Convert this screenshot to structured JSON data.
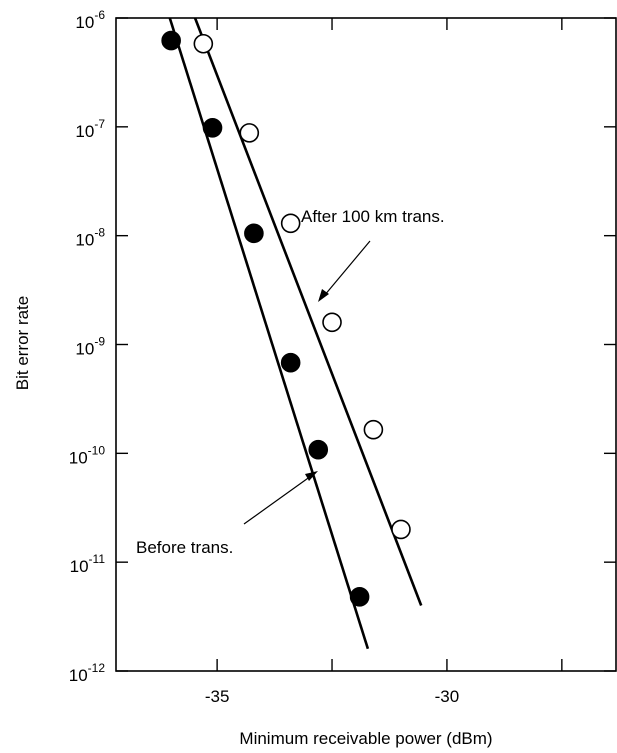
{
  "chart_data": {
    "type": "scatter",
    "title": "",
    "xlabel": "Minimum receivable power (dBm)",
    "ylabel": "Bit error rate",
    "xlim": [
      -37.2,
      -26.3
    ],
    "ylim_exponent": [
      -12,
      -6
    ],
    "yscale": "log",
    "x_ticks": [
      {
        "value": -35,
        "label": "-35"
      },
      {
        "value": -30,
        "label": "-30"
      }
    ],
    "y_ticks": [
      {
        "exp": -6,
        "base": "10",
        "sup": "-6"
      },
      {
        "exp": -7,
        "base": "10",
        "sup": "-7"
      },
      {
        "exp": -8,
        "base": "10",
        "sup": "-8"
      },
      {
        "exp": -9,
        "base": "10",
        "sup": "-9"
      },
      {
        "exp": -10,
        "base": "10",
        "sup": "-10"
      },
      {
        "exp": -11,
        "base": "10",
        "sup": "-11"
      },
      {
        "exp": -12,
        "base": "10",
        "sup": "-12"
      }
    ],
    "grid": false,
    "series": [
      {
        "marker": "filled-circle",
        "color": "#000000",
        "points": [
          {
            "x": -36.0,
            "y": 6.2e-07
          },
          {
            "x": -35.1,
            "y": 9.8e-08
          },
          {
            "x": -34.2,
            "y": 1.05e-08
          },
          {
            "x": -33.4,
            "y": 6.8e-10
          },
          {
            "x": -32.8,
            "y": 1.08e-10
          },
          {
            "x": -31.9,
            "y": 4.8e-12
          }
        ],
        "fit_line": [
          {
            "x": -36.03,
            "y": 1e-06
          },
          {
            "x": -31.72,
            "y": 1.6e-12
          }
        ]
      },
      {
        "marker": "open-circle",
        "color": "#000000",
        "points": [
          {
            "x": -35.3,
            "y": 5.8e-07
          },
          {
            "x": -34.3,
            "y": 8.8e-08
          },
          {
            "x": -33.4,
            "y": 1.3e-08
          },
          {
            "x": -32.5,
            "y": 1.6e-09
          },
          {
            "x": -31.6,
            "y": 1.65e-10
          },
          {
            "x": -31.0,
            "y": 2e-11
          }
        ],
        "fit_line": [
          {
            "x": -35.48,
            "y": 1e-06
          },
          {
            "x": -30.56,
            "y": 4e-12
          }
        ]
      }
    ],
    "annotations": [
      {
        "text": "After 100 km trans."
      },
      {
        "text": "Before trans."
      }
    ]
  }
}
